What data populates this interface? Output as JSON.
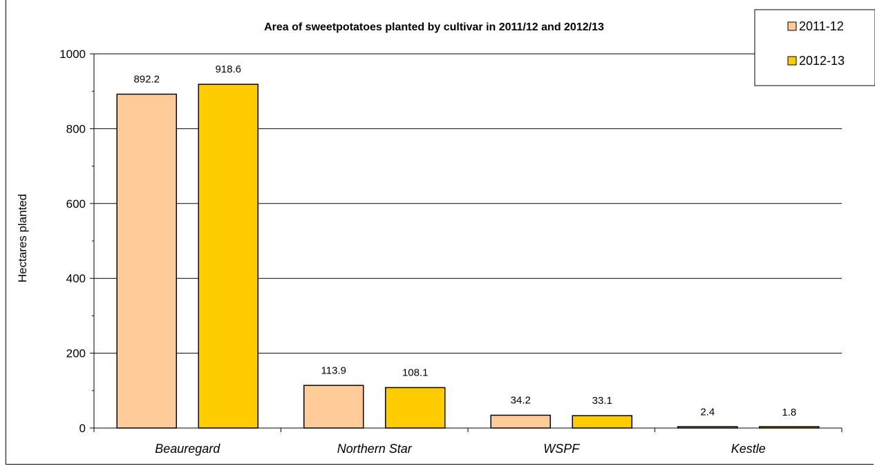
{
  "chart_data": {
    "type": "bar",
    "title": "Area of sweetpotatoes planted by cultivar in 2011/12 and 2012/13",
    "xlabel": "",
    "ylabel": "Hectares planted",
    "categories": [
      "Beauregard",
      "Northern Star",
      "WSPF",
      "Kestle"
    ],
    "series": [
      {
        "name": "2011-12",
        "values": [
          892.2,
          113.9,
          34.2,
          2.4
        ],
        "data_labels": [
          "892.2",
          "113.9",
          "34.2",
          "2.4"
        ],
        "color": "#FFCC99"
      },
      {
        "name": "2012-13",
        "values": [
          918.6,
          108.1,
          33.1,
          1.8
        ],
        "data_labels": [
          "918.6",
          "108.1",
          "33.1",
          "1.8"
        ],
        "color": "#FFCC00"
      }
    ],
    "ylim": [
      0,
      1000
    ],
    "yticks": [
      "0",
      "200",
      "400",
      "600",
      "800",
      "1000"
    ],
    "grid": true,
    "legend_position": "top-right"
  }
}
